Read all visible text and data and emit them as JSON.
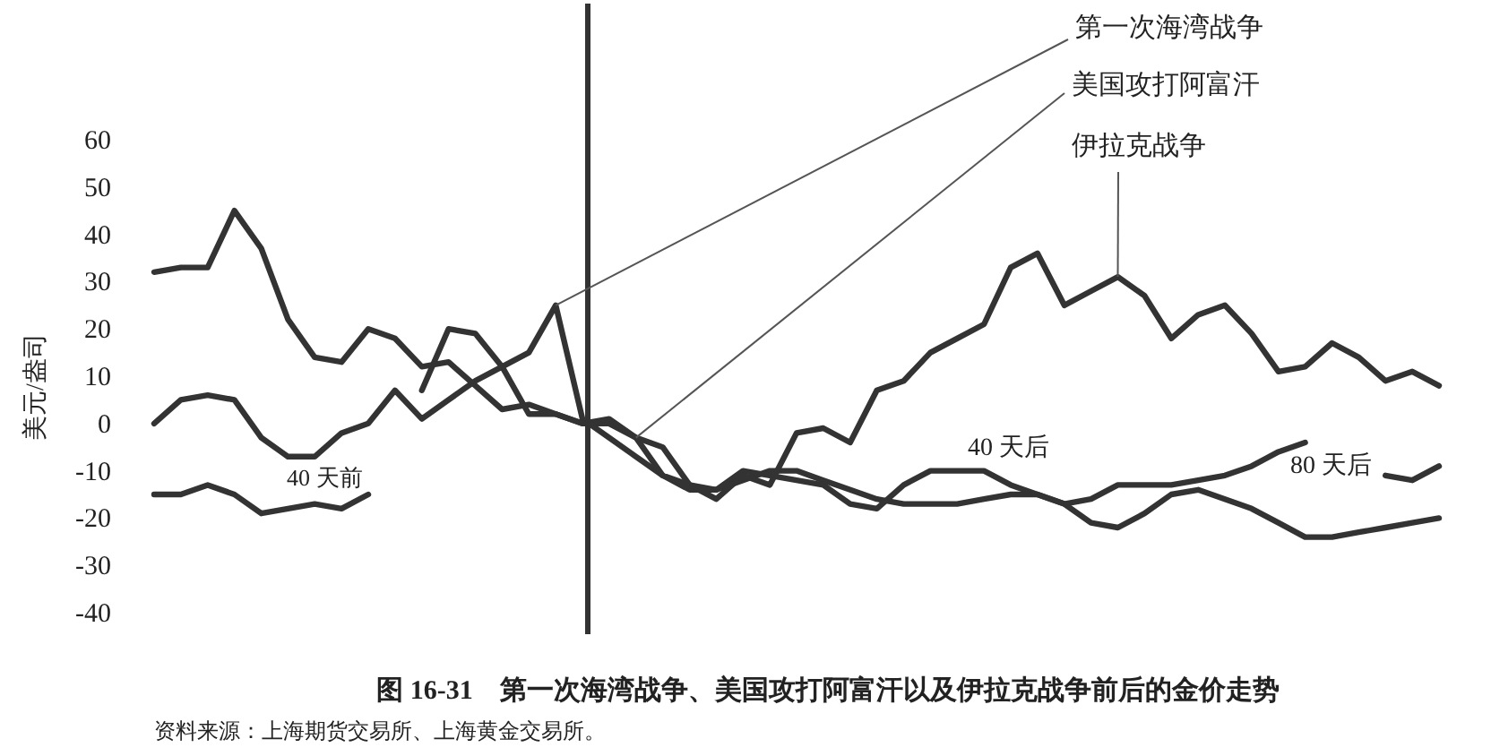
{
  "chart_data": {
    "type": "line",
    "title": "图 16-31　第一次海湾战争、美国攻打阿富汗以及伊拉克战争前后的金价走势",
    "ylabel": "美元/盎司",
    "annotations": [
      "40 天前",
      "40 天后",
      "80 天后",
      "资料来源：上海期货交易所、上海黄金交易所。"
    ],
    "categories": [
      null,
      null,
      null,
      null,
      null,
      null,
      null,
      null,
      null,
      null,
      null,
      null,
      null,
      null,
      null,
      null,
      null,
      null,
      null,
      null,
      null,
      null,
      null,
      null,
      null,
      null,
      null,
      null,
      null,
      null,
      null,
      null,
      null,
      null,
      null,
      null,
      null,
      null,
      null,
      null,
      null,
      null,
      null,
      null,
      null,
      null,
      null,
      null,
      null
    ],
    "ylim": [
      -40,
      60
    ],
    "yticks": [
      60,
      50,
      40,
      30,
      20,
      10,
      0,
      -10,
      -20,
      -30,
      -40
    ],
    "tick_labels": "y",
    "grid": false,
    "legend": false,
    "line_style": "solid",
    "series": [
      {
        "name": "第一次海湾战争",
        "color": "#333333",
        "values": [
          -15,
          -15,
          -13,
          -15,
          -19,
          -18,
          -17,
          -18,
          -15,
          null,
          7,
          20,
          19,
          12,
          15,
          25,
          1,
          -3,
          -7,
          -11,
          -14,
          -14,
          -12,
          -10,
          -10,
          -12,
          -14,
          -16,
          -17,
          -17,
          -17,
          -16,
          -15,
          -15,
          -17,
          -21,
          -22,
          -19,
          -15,
          -14,
          -16,
          -18,
          -21,
          -24,
          -24,
          -23,
          -22,
          -21,
          -20
        ]
      },
      {
        "name": "美国攻打阿富汗",
        "color": "#333333",
        "values": [
          0,
          5,
          6,
          5,
          -3,
          -7,
          -7,
          -2,
          0,
          7,
          1,
          5,
          9,
          12,
          2,
          2,
          0,
          0,
          -3,
          -11,
          -13,
          -14,
          -10,
          -11,
          -12,
          -13,
          -17,
          -18,
          -13,
          -10,
          -10,
          -10,
          -13,
          -15,
          -17,
          -16,
          -13,
          -13,
          -13,
          -12,
          -11,
          -9,
          -6,
          -4,
          null,
          null,
          -11,
          -12,
          -9
        ]
      },
      {
        "name": "伊拉克战争",
        "color": "#333333",
        "values": [
          32,
          33,
          33,
          45,
          37,
          22,
          14,
          13,
          20,
          18,
          12,
          13,
          8,
          3,
          4,
          2,
          0,
          1,
          -3,
          -5,
          -13,
          -16,
          -11,
          -13,
          -2,
          -1,
          -4,
          7,
          9,
          15,
          18,
          21,
          33,
          36,
          25,
          28,
          31,
          27,
          18,
          23,
          25,
          19,
          11,
          12,
          17,
          14,
          9,
          11,
          8
        ]
      }
    ]
  }
}
